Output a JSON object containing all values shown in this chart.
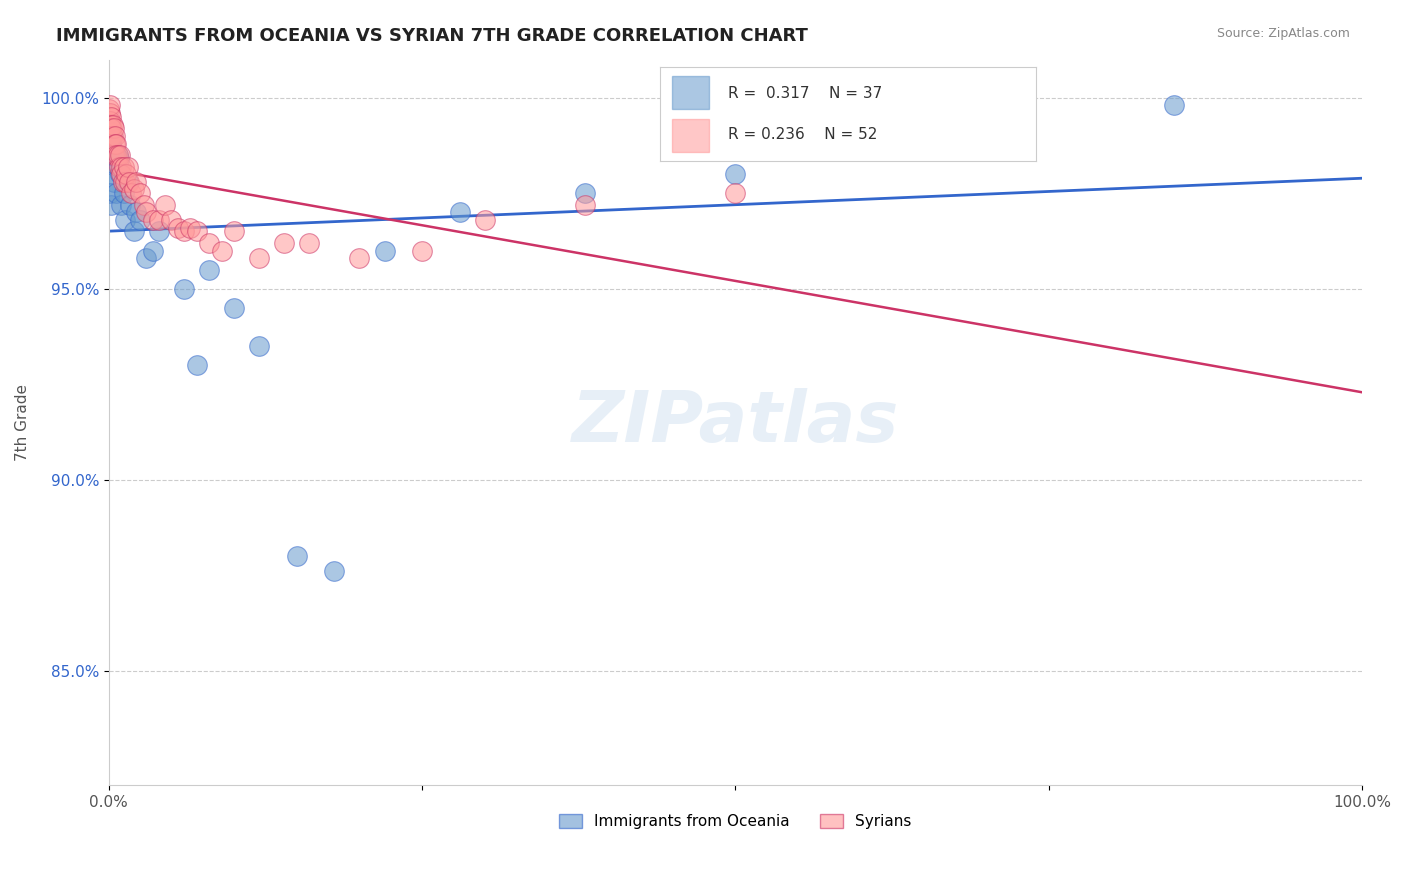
{
  "title": "IMMIGRANTS FROM OCEANIA VS SYRIAN 7TH GRADE CORRELATION CHART",
  "source_text": "Source: ZipAtlas.com",
  "ylabel": "7th Grade",
  "xlim": [
    0.0,
    1.0
  ],
  "ylim": [
    0.82,
    1.01
  ],
  "yticks": [
    0.85,
    0.9,
    0.95,
    1.0
  ],
  "yticklabels": [
    "85.0%",
    "90.0%",
    "95.0%",
    "100.0%"
  ],
  "blue_R": 0.317,
  "blue_N": 37,
  "pink_R": 0.236,
  "pink_N": 52,
  "blue_color": "#6699CC",
  "pink_color": "#FF9999",
  "blue_line_color": "#3366CC",
  "pink_line_color": "#CC3366",
  "legend_label_blue": "Immigrants from Oceania",
  "legend_label_pink": "Syrians",
  "blue_scatter_x": [
    0.0008,
    0.001,
    0.0015,
    0.0018,
    0.002,
    0.0022,
    0.003,
    0.004,
    0.005,
    0.006,
    0.007,
    0.008,
    0.009,
    0.01,
    0.012,
    0.013,
    0.015,
    0.017,
    0.02,
    0.022,
    0.025,
    0.03,
    0.035,
    0.04,
    0.06,
    0.07,
    0.08,
    0.1,
    0.12,
    0.15,
    0.18,
    0.22,
    0.28,
    0.38,
    0.5,
    0.72,
    0.85
  ],
  "blue_scatter_y": [
    0.98,
    0.975,
    0.972,
    0.988,
    0.985,
    0.99,
    0.983,
    0.978,
    0.985,
    0.975,
    0.985,
    0.984,
    0.98,
    0.972,
    0.975,
    0.968,
    0.978,
    0.972,
    0.965,
    0.97,
    0.968,
    0.958,
    0.96,
    0.965,
    0.95,
    0.93,
    0.955,
    0.945,
    0.935,
    0.88,
    0.876,
    0.96,
    0.97,
    0.975,
    0.98,
    0.998,
    0.998
  ],
  "pink_scatter_x": [
    0.0005,
    0.0008,
    0.001,
    0.0012,
    0.0015,
    0.0018,
    0.002,
    0.002,
    0.003,
    0.003,
    0.004,
    0.004,
    0.005,
    0.005,
    0.006,
    0.006,
    0.007,
    0.008,
    0.009,
    0.01,
    0.01,
    0.011,
    0.012,
    0.013,
    0.014,
    0.015,
    0.016,
    0.018,
    0.02,
    0.022,
    0.025,
    0.028,
    0.03,
    0.035,
    0.04,
    0.045,
    0.05,
    0.055,
    0.06,
    0.065,
    0.07,
    0.08,
    0.09,
    0.1,
    0.12,
    0.14,
    0.16,
    0.2,
    0.25,
    0.3,
    0.38,
    0.5
  ],
  "pink_scatter_y": [
    0.997,
    0.996,
    0.994,
    0.998,
    0.995,
    0.993,
    0.992,
    0.99,
    0.99,
    0.993,
    0.992,
    0.985,
    0.99,
    0.988,
    0.988,
    0.985,
    0.985,
    0.982,
    0.985,
    0.982,
    0.98,
    0.978,
    0.982,
    0.978,
    0.98,
    0.982,
    0.978,
    0.975,
    0.976,
    0.978,
    0.975,
    0.972,
    0.97,
    0.968,
    0.968,
    0.972,
    0.968,
    0.966,
    0.965,
    0.966,
    0.965,
    0.962,
    0.96,
    0.965,
    0.958,
    0.962,
    0.962,
    0.958,
    0.96,
    0.968,
    0.972,
    0.975
  ]
}
